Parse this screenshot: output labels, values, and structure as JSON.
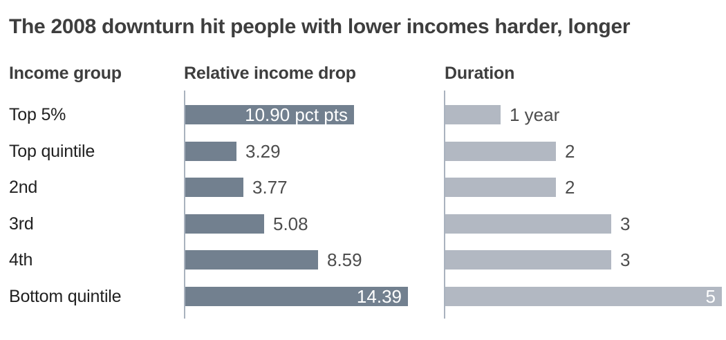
{
  "title": "The 2008 downturn hit people with lower incomes harder, longer",
  "headers": {
    "income_group": "Income group",
    "relative_income_drop": "Relative income drop",
    "duration": "Duration"
  },
  "colors": {
    "drop_bar": "#72808F",
    "duration_bar": "#B2B8C2",
    "axis_line": "#A9B2BE",
    "title_text": "#3E3E3E",
    "header_text": "#3E3E3E",
    "category_text": "#212121",
    "value_text_outside": "#4D4D4D",
    "value_text_inside": "#FFFFFF",
    "background": "#FFFFFF"
  },
  "chart_data": {
    "type": "bar",
    "orientation": "horizontal",
    "title": "The 2008 downturn hit people with lower incomes harder, longer",
    "categories": [
      "Top 5%",
      "Top quintile",
      "2nd",
      "3rd",
      "4th",
      "Bottom quintile"
    ],
    "grid": false,
    "legend": "none",
    "series": [
      {
        "name": "Relative income drop",
        "unit": "pct pts",
        "values": [
          10.9,
          3.29,
          3.77,
          5.08,
          8.59,
          14.39
        ],
        "labels": [
          "10.90 pct pts",
          "3.29",
          "3.77",
          "5.08",
          "8.59",
          "14.39"
        ],
        "label_inside": [
          true,
          false,
          false,
          false,
          false,
          true
        ],
        "xlim": [
          0,
          14.7
        ]
      },
      {
        "name": "Duration",
        "unit": "years",
        "values": [
          1,
          2,
          2,
          3,
          3,
          5
        ],
        "labels": [
          "1 year",
          "2",
          "2",
          "3",
          "3",
          "5"
        ],
        "label_inside": [
          false,
          false,
          false,
          false,
          false,
          true
        ],
        "xlim": [
          0,
          5
        ]
      }
    ]
  }
}
